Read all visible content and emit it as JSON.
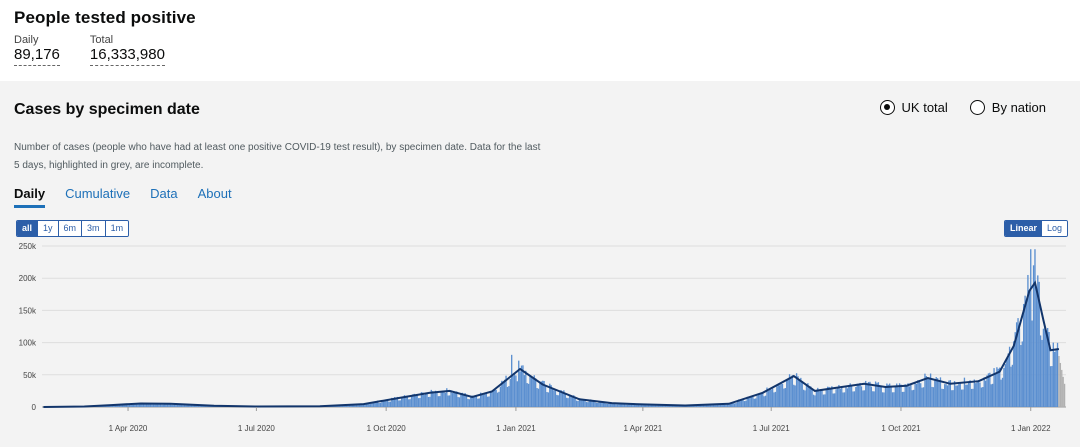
{
  "headline": {
    "title": "People tested positive",
    "daily_label": "Daily",
    "daily_value": "89,176",
    "total_label": "Total",
    "total_value": "16,333,980"
  },
  "card": {
    "title": "Cases by specimen date",
    "radio_uk": "UK total",
    "radio_nation": "By nation",
    "description": "Number of cases (people who have had at least one positive COVID-19 test result), by specimen date. Data for the last 5 days, highlighted in grey, are incomplete.",
    "tabs": [
      "Daily",
      "Cumulative",
      "Data",
      "About"
    ],
    "range_buttons": [
      "all",
      "1y",
      "6m",
      "3m",
      "1m"
    ],
    "scale_buttons": [
      "Linear",
      "Log"
    ]
  },
  "colors": {
    "bar": "#5b8fd0",
    "bar_incomplete": "#b0b0b0",
    "line": "#12356b",
    "accent": "#1d70b8"
  },
  "chart_data": {
    "type": "bar",
    "y_ticks": [
      "0",
      "50k",
      "100k",
      "150k",
      "200k",
      "250k"
    ],
    "ylim": [
      0,
      250000
    ],
    "x_ticks": [
      "1 Apr 2020",
      "1 Jul 2020",
      "1 Oct 2020",
      "1 Jan 2021",
      "1 Apr 2021",
      "1 Jul 2021",
      "1 Oct 2021",
      "1 Jan 2022"
    ],
    "x_tick_dates": [
      "2020-04-01",
      "2020-07-01",
      "2020-10-01",
      "2021-01-01",
      "2021-04-01",
      "2021-07-01",
      "2021-10-01",
      "2022-01-01"
    ],
    "x_range": [
      "2020-01-31",
      "2022-01-26"
    ],
    "incomplete_days": 5,
    "moving_average": [
      [
        "2020-02-01",
        0
      ],
      [
        "2020-03-01",
        700
      ],
      [
        "2020-03-20",
        3000
      ],
      [
        "2020-04-10",
        5500
      ],
      [
        "2020-05-01",
        5000
      ],
      [
        "2020-06-01",
        2000
      ],
      [
        "2020-07-01",
        800
      ],
      [
        "2020-08-15",
        1200
      ],
      [
        "2020-09-15",
        4500
      ],
      [
        "2020-10-10",
        14000
      ],
      [
        "2020-11-01",
        22000
      ],
      [
        "2020-11-15",
        25000
      ],
      [
        "2020-12-01",
        15500
      ],
      [
        "2020-12-15",
        24000
      ],
      [
        "2021-01-04",
        59000
      ],
      [
        "2021-01-20",
        35000
      ],
      [
        "2021-02-15",
        12000
      ],
      [
        "2021-03-10",
        6000
      ],
      [
        "2021-04-01",
        4000
      ],
      [
        "2021-05-01",
        2300
      ],
      [
        "2021-06-01",
        5000
      ],
      [
        "2021-06-25",
        22000
      ],
      [
        "2021-07-17",
        48000
      ],
      [
        "2021-08-01",
        25000
      ],
      [
        "2021-08-20",
        31000
      ],
      [
        "2021-09-05",
        36000
      ],
      [
        "2021-09-20",
        31000
      ],
      [
        "2021-10-05",
        33000
      ],
      [
        "2021-10-20",
        45000
      ],
      [
        "2021-11-05",
        36000
      ],
      [
        "2021-11-25",
        40000
      ],
      [
        "2021-12-10",
        55000
      ],
      [
        "2021-12-20",
        95000
      ],
      [
        "2021-12-31",
        180000
      ],
      [
        "2022-01-04",
        193000
      ],
      [
        "2022-01-10",
        135000
      ],
      [
        "2022-01-15",
        88000
      ],
      [
        "2022-01-21",
        90000
      ]
    ],
    "spikes": [
      [
        "2020-12-29",
        81000
      ],
      [
        "2021-01-03",
        72000
      ],
      [
        "2021-12-27",
        160000
      ],
      [
        "2021-12-30",
        205000
      ],
      [
        "2021-12-31",
        180000
      ],
      [
        "2022-01-01",
        245000
      ],
      [
        "2022-01-03",
        220000
      ],
      [
        "2022-01-04",
        245000
      ]
    ]
  }
}
